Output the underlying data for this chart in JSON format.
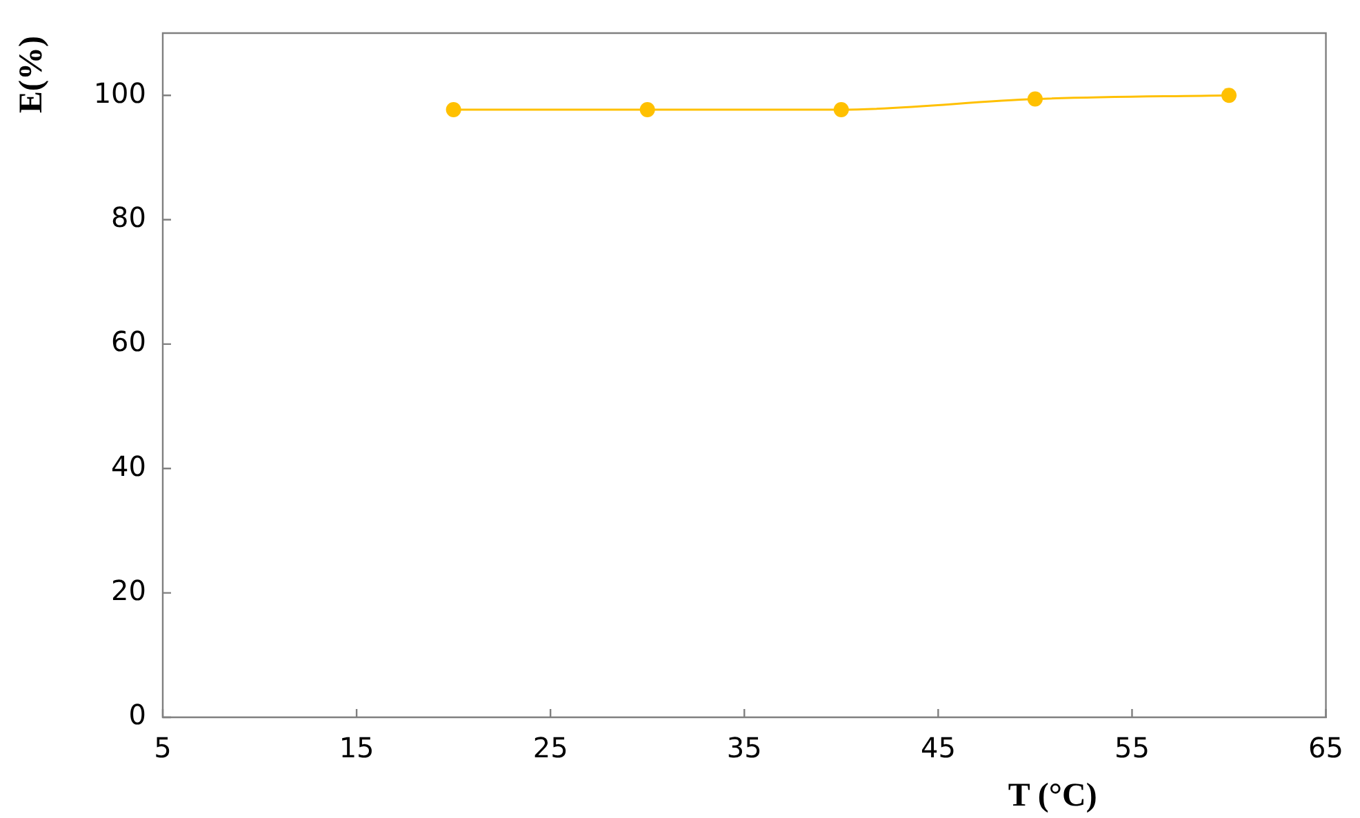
{
  "chart_data": {
    "type": "line",
    "xlabel": "T (°C)",
    "ylabel": "E(%)",
    "x": [
      20,
      30,
      40,
      50,
      60
    ],
    "series": [
      {
        "color": "#ffc000",
        "values": [
          97.7,
          97.7,
          97.7,
          99.4,
          100
        ]
      }
    ],
    "xlim": [
      5,
      65
    ],
    "xticks": [
      5,
      15,
      25,
      35,
      45,
      55,
      65
    ],
    "ylim": [
      0,
      110
    ],
    "yticks": [
      0,
      20,
      40,
      60,
      80,
      100
    ],
    "grid": false,
    "legend": false,
    "marker": "circle",
    "line_style": "solid"
  }
}
